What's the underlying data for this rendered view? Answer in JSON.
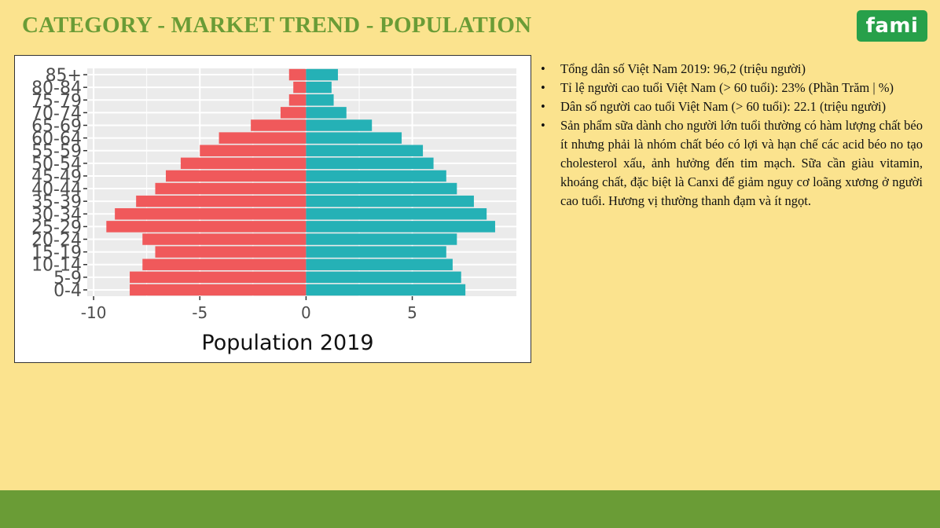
{
  "header": {
    "title": "CATEGORY - MARKET TREND - POPULATION",
    "logo_text": "fami"
  },
  "chart_data": {
    "type": "bar",
    "orientation": "horizontal",
    "categories": [
      "0-4",
      "5-9",
      "10-14",
      "15-19",
      "20-24",
      "25-29",
      "30-34",
      "35-39",
      "40-44",
      "45-49",
      "50-54",
      "55-59",
      "60-64",
      "65-69",
      "70-74",
      "75-79",
      "80-84",
      "85+"
    ],
    "series": [
      {
        "color": "#f0595b",
        "values": [
          -8.3,
          -8.3,
          -7.7,
          -7.1,
          -7.7,
          -9.4,
          -9.0,
          -8.0,
          -7.1,
          -6.6,
          -5.9,
          -5.0,
          -4.1,
          -2.6,
          -1.2,
          -0.8,
          -0.6,
          -0.8
        ]
      },
      {
        "color": "#25b1b6",
        "values": [
          7.5,
          7.3,
          6.9,
          6.6,
          7.1,
          8.9,
          8.5,
          7.9,
          7.1,
          6.6,
          6.0,
          5.5,
          4.5,
          3.1,
          1.9,
          1.3,
          1.2,
          1.5
        ]
      }
    ],
    "xlabel": "Population 2019",
    "ylabel": "",
    "xlim": [
      -10.3,
      9.9
    ],
    "xticks": [
      -10,
      -5,
      0,
      5
    ],
    "xtick_labels": [
      "-10",
      "-5",
      "0",
      "5"
    ],
    "grid": true,
    "legend": "none"
  },
  "notes": [
    "Tổng dân số Việt Nam 2019: 96,2 (triệu người)",
    "Tỉ lệ người cao tuổi Việt Nam (> 60 tuổi): 23% (Phần Trăm | %)",
    "Dân số người cao tuổi Việt Nam (> 60 tuổi): 22.1 (triệu người)",
    "Sản phẩm sữa dành cho người lớn tuổi thường có hàm lượng chất béo ít nhưng phải là nhóm chất béo có lợi và hạn chế các acid béo no tạo cholesterol xấu, ảnh hưởng đến tim mạch. Sữa cần giàu vitamin, khoáng chất, đặc biệt là Canxi để giảm nguy cơ loãng xương ở người cao tuổi. Hương vị thường thanh đạm và ít ngọt."
  ]
}
